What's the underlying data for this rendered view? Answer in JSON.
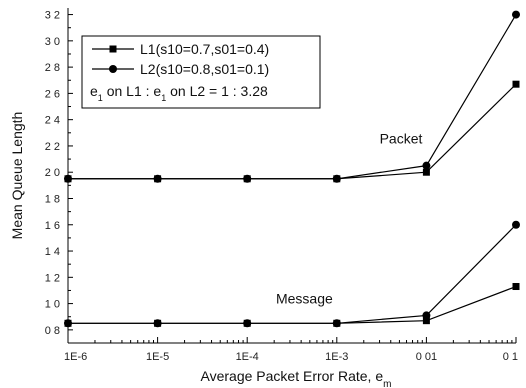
{
  "chart_data": {
    "type": "line",
    "xlabel": "Average Packet Error Rate, e",
    "xlabel_sub": "m",
    "ylabel": "Mean Queue Length",
    "x": [
      "1E-6",
      "1E-5",
      "1E-4",
      "1E-3",
      "0 01",
      "0 1"
    ],
    "ylim": [
      0.7,
      3.25
    ],
    "yticks": [
      "0 8",
      "1 0",
      "1 2",
      "1 4",
      "1 6",
      "1 8",
      "2 0",
      "2 2",
      "2 4",
      "2 6",
      "2 8",
      "3 0",
      "3 2"
    ],
    "ytick_values": [
      0.8,
      1.0,
      1.2,
      1.4,
      1.6,
      1.8,
      2.0,
      2.2,
      2.4,
      2.6,
      2.8,
      3.0,
      3.2
    ],
    "grid": false,
    "legend_placement": "top-left",
    "legend": [
      {
        "label": "L1(s10=0.7,s01=0.4)",
        "marker": "square"
      },
      {
        "label": "L2(s10=0.8,s01=0.1)",
        "marker": "circle"
      }
    ],
    "legend_note": {
      "parts": [
        "e",
        "1",
        " on L1 : e",
        "1",
        " on L2 = 1 : 3.28"
      ]
    },
    "annotations": [
      {
        "text": "Packet",
        "x": "0 01",
        "y": 2.22
      },
      {
        "text": "Message",
        "x": "1E-3",
        "y": 1.0
      }
    ],
    "series": [
      {
        "name": "Packet L1",
        "marker": "square",
        "values": [
          1.95,
          1.95,
          1.95,
          1.95,
          2.0,
          2.67
        ]
      },
      {
        "name": "Packet L2",
        "marker": "circle",
        "values": [
          1.95,
          1.95,
          1.95,
          1.95,
          2.05,
          3.2
        ]
      },
      {
        "name": "Message L1",
        "marker": "square",
        "values": [
          0.85,
          0.85,
          0.85,
          0.85,
          0.87,
          1.13
        ]
      },
      {
        "name": "Message L2",
        "marker": "circle",
        "values": [
          0.85,
          0.85,
          0.85,
          0.85,
          0.91,
          1.6
        ]
      }
    ]
  }
}
